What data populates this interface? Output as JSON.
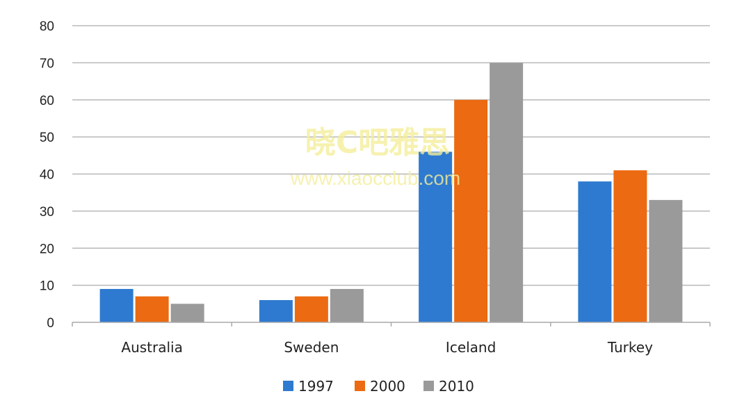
{
  "chart_data": {
    "type": "bar",
    "categories": [
      "Australia",
      "Sweden",
      "Iceland",
      "Turkey"
    ],
    "series": [
      {
        "name": "1997",
        "values": [
          9,
          6,
          46,
          38
        ],
        "color": "#2e7ad0"
      },
      {
        "name": "2000",
        "values": [
          7,
          7,
          60,
          41
        ],
        "color": "#ec6a11"
      },
      {
        "name": "2010",
        "values": [
          5,
          9,
          70,
          33
        ],
        "color": "#9a9a9a"
      }
    ],
    "title": "",
    "xlabel": "",
    "ylabel": "",
    "ylim": [
      0,
      80
    ],
    "yticks": [
      0,
      10,
      20,
      30,
      40,
      50,
      60,
      70,
      80
    ],
    "grid": true,
    "legend_position": "bottom"
  },
  "watermark": {
    "text_cn": "晓C吧雅思",
    "url": "www.xiaocclub.com"
  }
}
